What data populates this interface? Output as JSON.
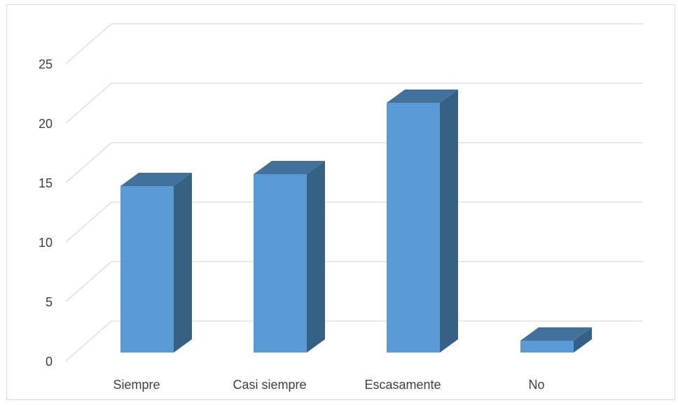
{
  "chart_data": {
    "type": "bar",
    "style": "3d-column",
    "categories": [
      "Siempre",
      "Casi siempre",
      "Escasamente",
      "No"
    ],
    "series": [
      {
        "values": [
          14,
          15,
          21,
          1
        ]
      }
    ],
    "ylim": [
      0,
      25
    ],
    "yticks": [
      "0",
      "5",
      "10",
      "15",
      "20",
      "25"
    ],
    "grid": true,
    "legend": "none",
    "colors": {
      "front": "#5b9bd5",
      "top": "#41719c",
      "side": "#366185",
      "grid": "#d9d9d9",
      "text": "#404040"
    }
  }
}
